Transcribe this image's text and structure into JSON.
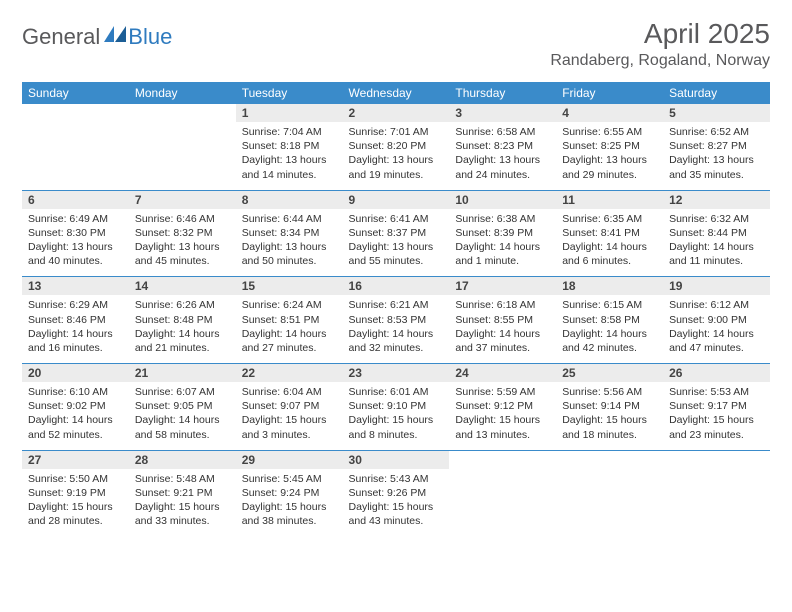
{
  "logo": {
    "general": "General",
    "blue": "Blue"
  },
  "title": "April 2025",
  "location": "Randaberg, Rogaland, Norway",
  "colors": {
    "header_bg": "#3a8bca",
    "header_fg": "#ffffff",
    "daynum_bg": "#ececec",
    "border": "#3a8bca",
    "text_muted": "#59595b"
  },
  "weekdays": [
    "Sunday",
    "Monday",
    "Tuesday",
    "Wednesday",
    "Thursday",
    "Friday",
    "Saturday"
  ],
  "weeks": [
    [
      null,
      null,
      {
        "n": "1",
        "sr": "7:04 AM",
        "ss": "8:18 PM",
        "dl": "13 hours and 14 minutes."
      },
      {
        "n": "2",
        "sr": "7:01 AM",
        "ss": "8:20 PM",
        "dl": "13 hours and 19 minutes."
      },
      {
        "n": "3",
        "sr": "6:58 AM",
        "ss": "8:23 PM",
        "dl": "13 hours and 24 minutes."
      },
      {
        "n": "4",
        "sr": "6:55 AM",
        "ss": "8:25 PM",
        "dl": "13 hours and 29 minutes."
      },
      {
        "n": "5",
        "sr": "6:52 AM",
        "ss": "8:27 PM",
        "dl": "13 hours and 35 minutes."
      }
    ],
    [
      {
        "n": "6",
        "sr": "6:49 AM",
        "ss": "8:30 PM",
        "dl": "13 hours and 40 minutes."
      },
      {
        "n": "7",
        "sr": "6:46 AM",
        "ss": "8:32 PM",
        "dl": "13 hours and 45 minutes."
      },
      {
        "n": "8",
        "sr": "6:44 AM",
        "ss": "8:34 PM",
        "dl": "13 hours and 50 minutes."
      },
      {
        "n": "9",
        "sr": "6:41 AM",
        "ss": "8:37 PM",
        "dl": "13 hours and 55 minutes."
      },
      {
        "n": "10",
        "sr": "6:38 AM",
        "ss": "8:39 PM",
        "dl": "14 hours and 1 minute."
      },
      {
        "n": "11",
        "sr": "6:35 AM",
        "ss": "8:41 PM",
        "dl": "14 hours and 6 minutes."
      },
      {
        "n": "12",
        "sr": "6:32 AM",
        "ss": "8:44 PM",
        "dl": "14 hours and 11 minutes."
      }
    ],
    [
      {
        "n": "13",
        "sr": "6:29 AM",
        "ss": "8:46 PM",
        "dl": "14 hours and 16 minutes."
      },
      {
        "n": "14",
        "sr": "6:26 AM",
        "ss": "8:48 PM",
        "dl": "14 hours and 21 minutes."
      },
      {
        "n": "15",
        "sr": "6:24 AM",
        "ss": "8:51 PM",
        "dl": "14 hours and 27 minutes."
      },
      {
        "n": "16",
        "sr": "6:21 AM",
        "ss": "8:53 PM",
        "dl": "14 hours and 32 minutes."
      },
      {
        "n": "17",
        "sr": "6:18 AM",
        "ss": "8:55 PM",
        "dl": "14 hours and 37 minutes."
      },
      {
        "n": "18",
        "sr": "6:15 AM",
        "ss": "8:58 PM",
        "dl": "14 hours and 42 minutes."
      },
      {
        "n": "19",
        "sr": "6:12 AM",
        "ss": "9:00 PM",
        "dl": "14 hours and 47 minutes."
      }
    ],
    [
      {
        "n": "20",
        "sr": "6:10 AM",
        "ss": "9:02 PM",
        "dl": "14 hours and 52 minutes."
      },
      {
        "n": "21",
        "sr": "6:07 AM",
        "ss": "9:05 PM",
        "dl": "14 hours and 58 minutes."
      },
      {
        "n": "22",
        "sr": "6:04 AM",
        "ss": "9:07 PM",
        "dl": "15 hours and 3 minutes."
      },
      {
        "n": "23",
        "sr": "6:01 AM",
        "ss": "9:10 PM",
        "dl": "15 hours and 8 minutes."
      },
      {
        "n": "24",
        "sr": "5:59 AM",
        "ss": "9:12 PM",
        "dl": "15 hours and 13 minutes."
      },
      {
        "n": "25",
        "sr": "5:56 AM",
        "ss": "9:14 PM",
        "dl": "15 hours and 18 minutes."
      },
      {
        "n": "26",
        "sr": "5:53 AM",
        "ss": "9:17 PM",
        "dl": "15 hours and 23 minutes."
      }
    ],
    [
      {
        "n": "27",
        "sr": "5:50 AM",
        "ss": "9:19 PM",
        "dl": "15 hours and 28 minutes."
      },
      {
        "n": "28",
        "sr": "5:48 AM",
        "ss": "9:21 PM",
        "dl": "15 hours and 33 minutes."
      },
      {
        "n": "29",
        "sr": "5:45 AM",
        "ss": "9:24 PM",
        "dl": "15 hours and 38 minutes."
      },
      {
        "n": "30",
        "sr": "5:43 AM",
        "ss": "9:26 PM",
        "dl": "15 hours and 43 minutes."
      },
      null,
      null,
      null
    ]
  ],
  "labels": {
    "sunrise": "Sunrise:",
    "sunset": "Sunset:",
    "daylight": "Daylight:"
  }
}
